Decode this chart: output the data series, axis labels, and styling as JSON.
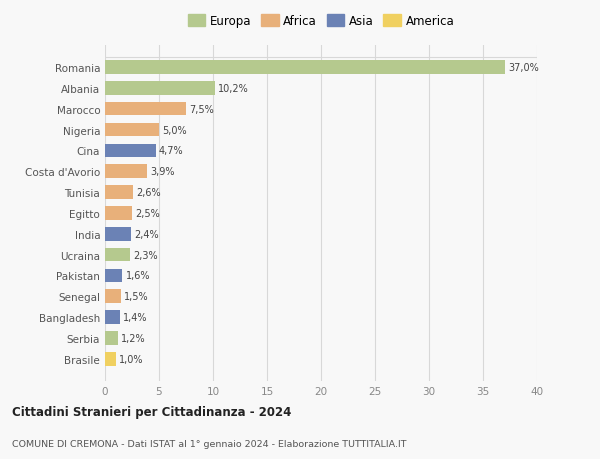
{
  "countries": [
    "Romania",
    "Albania",
    "Marocco",
    "Nigeria",
    "Cina",
    "Costa d'Avorio",
    "Tunisia",
    "Egitto",
    "India",
    "Ucraina",
    "Pakistan",
    "Senegal",
    "Bangladesh",
    "Serbia",
    "Brasile"
  ],
  "values": [
    37.0,
    10.2,
    7.5,
    5.0,
    4.7,
    3.9,
    2.6,
    2.5,
    2.4,
    2.3,
    1.6,
    1.5,
    1.4,
    1.2,
    1.0
  ],
  "labels": [
    "37,0%",
    "10,2%",
    "7,5%",
    "5,0%",
    "4,7%",
    "3,9%",
    "2,6%",
    "2,5%",
    "2,4%",
    "2,3%",
    "1,6%",
    "1,5%",
    "1,4%",
    "1,2%",
    "1,0%"
  ],
  "continents": [
    "Europa",
    "Europa",
    "Africa",
    "Africa",
    "Asia",
    "Africa",
    "Africa",
    "Africa",
    "Asia",
    "Europa",
    "Asia",
    "Africa",
    "Asia",
    "Europa",
    "America"
  ],
  "colors": {
    "Europa": "#b5c98e",
    "Africa": "#e8b07a",
    "Asia": "#6b82b5",
    "America": "#f0d060"
  },
  "xlim": [
    0,
    40
  ],
  "xticks": [
    0,
    5,
    10,
    15,
    20,
    25,
    30,
    35,
    40
  ],
  "title": "Cittadini Stranieri per Cittadinanza - 2024",
  "subtitle": "COMUNE DI CREMONA - Dati ISTAT al 1° gennaio 2024 - Elaborazione TUTTITALIA.IT",
  "background_color": "#f8f8f8",
  "grid_color": "#d8d8d8",
  "bar_height": 0.65,
  "legend_entries": [
    "Europa",
    "Africa",
    "Asia",
    "America"
  ]
}
